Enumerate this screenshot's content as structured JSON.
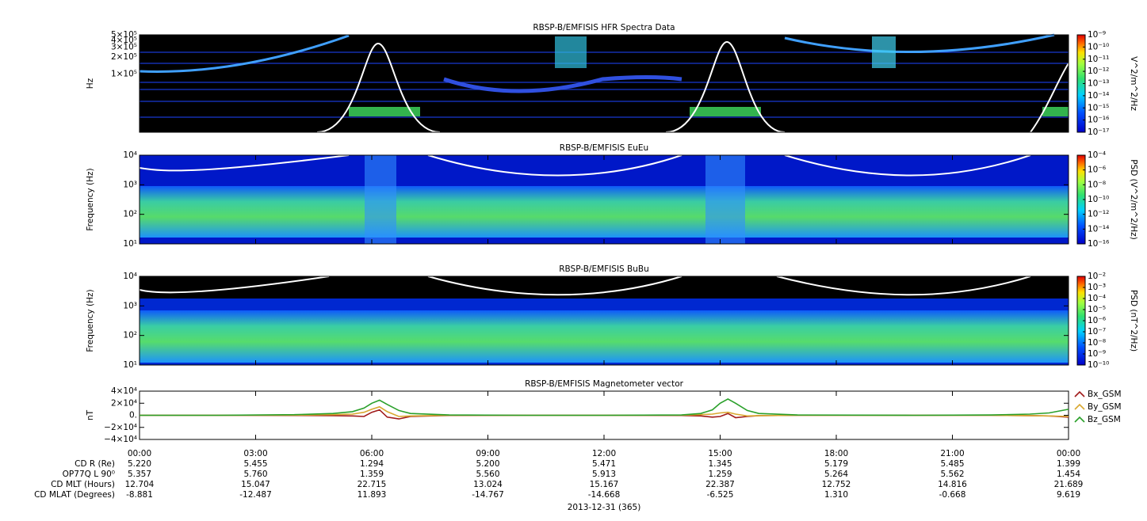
{
  "chart_data": [
    {
      "type": "spectrogram",
      "title": "RBSP-B/EMFISIS  HFR Spectra Data",
      "ylabel": "Hz",
      "log_y": true,
      "ylim": [
        9000,
        500000
      ],
      "yticks": [
        {
          "value": 100000,
          "label": "1×10⁵"
        },
        {
          "value": 200000,
          "label": "2×10⁵"
        },
        {
          "value": 300000,
          "label": "3×10⁵"
        },
        {
          "value": 400000,
          "label": "4×10⁵"
        },
        {
          "value": 500000,
          "label": "5×10⁵"
        }
      ],
      "xlim": [
        0,
        24
      ],
      "xticks": [
        0,
        3,
        6,
        9,
        12,
        15,
        18,
        21,
        24
      ],
      "colorbar": {
        "label": "V^2/m^2/Hz",
        "lim": [
          1e-17,
          1e-09
        ],
        "ticks": [
          {
            "value": 1e-09,
            "label": "10⁻⁹"
          },
          {
            "value": 1e-10,
            "label": "10⁻¹⁰"
          },
          {
            "value": 1e-11,
            "label": "10⁻¹¹"
          },
          {
            "value": 1e-12,
            "label": "10⁻¹²"
          },
          {
            "value": 1e-13,
            "label": "10⁻¹³"
          },
          {
            "value": 1e-14,
            "label": "10⁻¹⁴"
          },
          {
            "value": 1e-15,
            "label": "10⁻¹⁵"
          },
          {
            "value": 1e-16,
            "label": "10⁻¹⁶"
          },
          {
            "value": 1e-17,
            "label": "10⁻¹⁷"
          }
        ]
      }
    },
    {
      "type": "spectrogram",
      "title": "RBSP-B/EMFISIS  EuEu",
      "ylabel": "Frequency (Hz)",
      "log_y": true,
      "ylim": [
        10,
        10000
      ],
      "yticks": [
        {
          "value": 10,
          "label": "10¹"
        },
        {
          "value": 100,
          "label": "10²"
        },
        {
          "value": 1000,
          "label": "10³"
        },
        {
          "value": 10000,
          "label": "10⁴"
        }
      ],
      "xlim": [
        0,
        24
      ],
      "xticks": [
        0,
        3,
        6,
        9,
        12,
        15,
        18,
        21,
        24
      ],
      "colorbar": {
        "label": "PSD (V^2/m^2/Hz)",
        "lim": [
          1e-16,
          0.0001
        ],
        "ticks": [
          {
            "value": 0.0001,
            "label": "10⁻⁴"
          },
          {
            "value": 1e-06,
            "label": "10⁻⁶"
          },
          {
            "value": 1e-08,
            "label": "10⁻⁸"
          },
          {
            "value": 1e-10,
            "label": "10⁻¹⁰"
          },
          {
            "value": 1e-12,
            "label": "10⁻¹²"
          },
          {
            "value": 1e-14,
            "label": "10⁻¹⁴"
          },
          {
            "value": 1e-16,
            "label": "10⁻¹⁶"
          }
        ]
      }
    },
    {
      "type": "spectrogram",
      "title": "RBSP-B/EMFISIS  BuBu",
      "ylabel": "Frequency (Hz)",
      "log_y": true,
      "ylim": [
        10,
        10000
      ],
      "yticks": [
        {
          "value": 10,
          "label": "10¹"
        },
        {
          "value": 100,
          "label": "10²"
        },
        {
          "value": 1000,
          "label": "10³"
        },
        {
          "value": 10000,
          "label": "10⁴"
        }
      ],
      "xlim": [
        0,
        24
      ],
      "xticks": [
        0,
        3,
        6,
        9,
        12,
        15,
        18,
        21,
        24
      ],
      "colorbar": {
        "label": "PSD (nT^2/Hz)",
        "lim": [
          1e-10,
          0.01
        ],
        "ticks": [
          {
            "value": 0.01,
            "label": "10⁻²"
          },
          {
            "value": 0.001,
            "label": "10⁻³"
          },
          {
            "value": 0.0001,
            "label": "10⁻⁴"
          },
          {
            "value": 1e-05,
            "label": "10⁻⁵"
          },
          {
            "value": 1e-06,
            "label": "10⁻⁶"
          },
          {
            "value": 1e-07,
            "label": "10⁻⁷"
          },
          {
            "value": 1e-08,
            "label": "10⁻⁸"
          },
          {
            "value": 1e-09,
            "label": "10⁻⁹"
          },
          {
            "value": 1e-10,
            "label": "10⁻¹⁰"
          }
        ]
      }
    },
    {
      "type": "line",
      "title": "RBSP-B/EMFISIS  Magnetometer vector",
      "ylabel": "nT",
      "log_y": false,
      "ylim": [
        -40000,
        40000
      ],
      "yticks": [
        {
          "value": -40000,
          "label": "−4×10⁴"
        },
        {
          "value": -20000,
          "label": "−2×10⁴"
        },
        {
          "value": 0,
          "label": "0."
        },
        {
          "value": 20000,
          "label": "2×10⁴"
        },
        {
          "value": 40000,
          "label": "4×10⁴"
        }
      ],
      "xlim": [
        0,
        24
      ],
      "xticks": [
        {
          "value": 0,
          "label": "00:00"
        },
        {
          "value": 3,
          "label": "03:00"
        },
        {
          "value": 6,
          "label": "06:00"
        },
        {
          "value": 9,
          "label": "09:00"
        },
        {
          "value": 12,
          "label": "12:00"
        },
        {
          "value": 15,
          "label": "15:00"
        },
        {
          "value": 18,
          "label": "18:00"
        },
        {
          "value": 21,
          "label": "21:00"
        },
        {
          "value": 24,
          "label": "00:00"
        }
      ],
      "x": [
        0,
        2,
        4,
        5,
        5.5,
        5.8,
        6,
        6.2,
        6.4,
        6.7,
        7,
        8,
        10,
        12,
        14,
        14.5,
        14.8,
        15,
        15.2,
        15.4,
        15.7,
        16,
        17,
        20,
        22,
        23,
        23.5,
        24
      ],
      "series": [
        {
          "name": "Bx_GSM",
          "color": "#a01a1a",
          "values": [
            0,
            0,
            -200,
            -500,
            -1000,
            -2000,
            5000,
            9000,
            -3000,
            -6000,
            -2000,
            -300,
            0,
            0,
            -200,
            -1000,
            -3000,
            -2000,
            3000,
            -4000,
            -2000,
            -500,
            0,
            0,
            0,
            -500,
            -1000,
            -3000
          ]
        },
        {
          "name": "By_GSM",
          "color": "#d9a830",
          "values": [
            0,
            0,
            300,
            1000,
            2000,
            5000,
            10000,
            14000,
            6000,
            -2000,
            -1000,
            0,
            0,
            0,
            200,
            1000,
            2000,
            4000,
            5000,
            2000,
            -1000,
            -500,
            0,
            0,
            0,
            -500,
            -1000,
            -2000
          ]
        },
        {
          "name": "Bz_GSM",
          "color": "#2aa02a",
          "values": [
            0,
            0,
            1000,
            3000,
            6000,
            12000,
            20000,
            25000,
            18000,
            8000,
            3000,
            500,
            0,
            0,
            500,
            3000,
            9000,
            20000,
            27000,
            20000,
            8000,
            3000,
            500,
            0,
            500,
            2000,
            4000,
            10000
          ]
        }
      ]
    }
  ],
  "ephemeris": {
    "rows": [
      {
        "label": "CD R (Re)",
        "values": [
          "5.220",
          "5.455",
          "1.294",
          "5.200",
          "5.471",
          "1.345",
          "5.179",
          "5.485",
          "1.399"
        ]
      },
      {
        "label": "OP77Q L 90⁰",
        "values": [
          "5.357",
          "5.760",
          "1.359",
          "5.560",
          "5.913",
          "1.259",
          "5.264",
          "5.562",
          "1.454"
        ]
      },
      {
        "label": "CD MLT (Hours)",
        "values": [
          "12.704",
          "15.047",
          "22.715",
          "13.024",
          "15.167",
          "22.387",
          "12.752",
          "14.816",
          "21.689"
        ]
      },
      {
        "label": "CD MLAT (Degrees)",
        "values": [
          "-8.881",
          "-12.487",
          "11.893",
          "-14.767",
          "-14.668",
          "-6.525",
          "1.310",
          "-0.668",
          "9.619"
        ]
      }
    ],
    "date": "2013-12-31 (365)"
  }
}
